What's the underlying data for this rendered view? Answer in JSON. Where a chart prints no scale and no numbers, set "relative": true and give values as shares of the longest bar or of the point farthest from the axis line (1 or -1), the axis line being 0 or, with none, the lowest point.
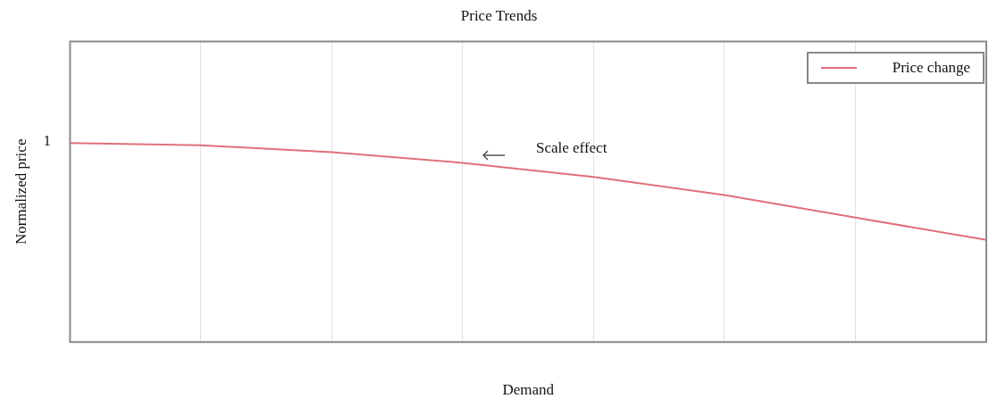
{
  "chart_data": {
    "type": "line",
    "title": "Price Trends",
    "xlabel": "Demand",
    "ylabel": "Normalized price",
    "relative": true,
    "categories": [
      null,
      null,
      null,
      null,
      null,
      null,
      null,
      null
    ],
    "series": [
      {
        "name": "Price change",
        "color": "#e0707a",
        "values": [
          1,
          0.988,
          0.954,
          0.9,
          0.829,
          0.738,
          0.625,
          0.513
        ]
      }
    ],
    "annotations": [
      "1",
      "Scale effect"
    ],
    "grid": "x",
    "legend": "top right"
  }
}
